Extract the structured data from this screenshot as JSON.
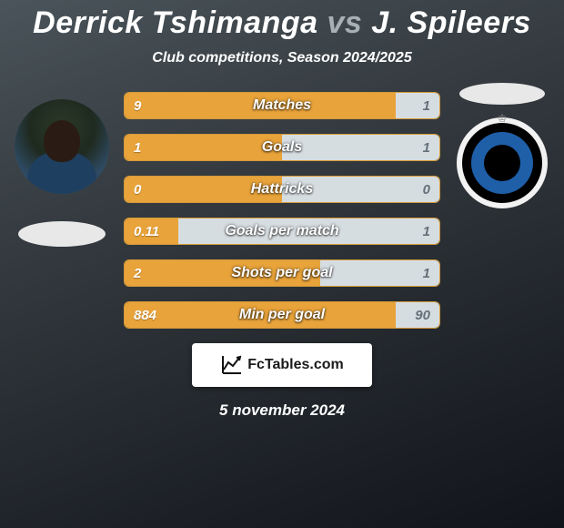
{
  "title": {
    "player1": "Derrick Tshimanga",
    "vs": "vs",
    "player2": "J. Spileers"
  },
  "subtitle": "Club competitions, Season 2024/2025",
  "date": "5 november 2024",
  "footer_brand": "FcTables.com",
  "colors": {
    "bar_left_bg": "#e8a33a",
    "bar_right_bg": "#d6dde1",
    "bar_border": "#d39a3a",
    "bar_left_text": "#ffffff",
    "bar_right_text": "#647079",
    "bar_label_text": "#ffffff"
  },
  "stats": [
    {
      "label": "Matches",
      "left_val": "9",
      "right_val": "1",
      "left_pct": 86,
      "right_pct": 14
    },
    {
      "label": "Goals",
      "left_val": "1",
      "right_val": "1",
      "left_pct": 50,
      "right_pct": 50
    },
    {
      "label": "Hattricks",
      "left_val": "0",
      "right_val": "0",
      "left_pct": 50,
      "right_pct": 50
    },
    {
      "label": "Goals per match",
      "left_val": "0.11",
      "right_val": "1",
      "left_pct": 17,
      "right_pct": 83
    },
    {
      "label": "Shots per goal",
      "left_val": "2",
      "right_val": "1",
      "left_pct": 62,
      "right_pct": 38
    },
    {
      "label": "Min per goal",
      "left_val": "884",
      "right_val": "90",
      "left_pct": 86,
      "right_pct": 14
    }
  ]
}
